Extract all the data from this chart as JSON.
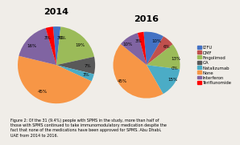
{
  "title_2014": "2014",
  "title_2016": "2016",
  "slice_colors": [
    "#4472c4",
    "#c0504d",
    "#9bbb59",
    "#595959",
    "#4bacc6",
    "#f79646",
    "#8064a2",
    "#ff0000"
  ],
  "pie2014_values": [
    3,
    0,
    19,
    7,
    3,
    45,
    16,
    3
  ],
  "pie2014_labels": [
    "3%",
    "0%",
    "19%",
    "7%",
    "3%",
    "45%",
    "16%",
    "3%"
  ],
  "pie2016_values": [
    10,
    6,
    13,
    0,
    15,
    45,
    10,
    3
  ],
  "pie2016_labels": [
    "10%",
    "6%",
    "13%",
    "0%",
    "15%",
    "45%",
    "10%",
    "3%"
  ],
  "legend_labels": [
    "LTFU",
    "DMF",
    "Fingolimod",
    "GA",
    "Natalizumab",
    "None",
    "Interferon",
    "Teriflunomide"
  ],
  "caption": "Figure 2: Of the 31 (9.4%) people with SPMS in the study, more than half of\nthose with SPMS continued to take immunomodulatory medication despite the\nfact that none of the medications have been approved for SPMS. Abu Dhabi,\nUAE from 2014 to 2016.",
  "bg_color": "#f0ede8"
}
